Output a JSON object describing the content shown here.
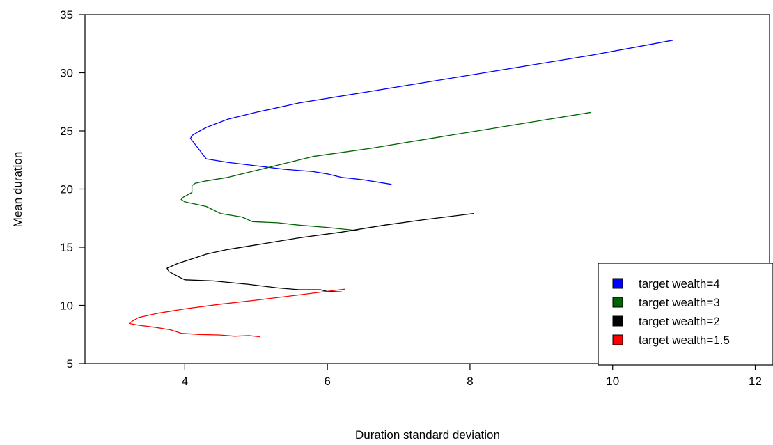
{
  "chart_data": {
    "type": "line",
    "title": "",
    "xlabel": "Duration standard deviation",
    "ylabel": "Mean duration",
    "xlim": [
      2.6,
      12.2
    ],
    "ylim": [
      5,
      35
    ],
    "x_ticks": [
      4,
      6,
      8,
      10,
      12
    ],
    "y_ticks": [
      5,
      10,
      15,
      20,
      25,
      30,
      35
    ],
    "grid": false,
    "legend_position": "bottom-right",
    "series": [
      {
        "name": "target wealth=4",
        "color": "#0000FF",
        "points": [
          [
            10.85,
            32.8
          ],
          [
            9.7,
            31.5
          ],
          [
            8.5,
            30.3
          ],
          [
            7.4,
            29.2
          ],
          [
            6.4,
            28.2
          ],
          [
            5.6,
            27.4
          ],
          [
            5.0,
            26.6
          ],
          [
            4.6,
            26.0
          ],
          [
            4.3,
            25.3
          ],
          [
            4.18,
            24.9
          ],
          [
            4.1,
            24.6
          ],
          [
            4.08,
            24.35
          ],
          [
            4.15,
            23.8
          ],
          [
            4.3,
            22.6
          ],
          [
            4.6,
            22.3
          ],
          [
            5.0,
            22.0
          ],
          [
            5.4,
            21.7
          ],
          [
            5.8,
            21.5
          ],
          [
            6.0,
            21.3
          ],
          [
            6.2,
            21.0
          ],
          [
            6.5,
            20.8
          ],
          [
            6.9,
            20.4
          ]
        ]
      },
      {
        "name": "target wealth=3",
        "color": "#006400",
        "points": [
          [
            9.7,
            26.6
          ],
          [
            8.7,
            25.6
          ],
          [
            7.6,
            24.5
          ],
          [
            6.6,
            23.5
          ],
          [
            5.8,
            22.8
          ],
          [
            5.4,
            22.2
          ],
          [
            5.0,
            21.6
          ],
          [
            4.6,
            21.0
          ],
          [
            4.3,
            20.7
          ],
          [
            4.15,
            20.5
          ],
          [
            4.1,
            20.3
          ],
          [
            4.1,
            19.7
          ],
          [
            3.98,
            19.3
          ],
          [
            3.95,
            19.1
          ],
          [
            4.0,
            18.9
          ],
          [
            4.3,
            18.5
          ],
          [
            4.5,
            17.9
          ],
          [
            4.8,
            17.6
          ],
          [
            4.95,
            17.2
          ],
          [
            5.3,
            17.1
          ],
          [
            5.6,
            16.9
          ],
          [
            6.0,
            16.7
          ],
          [
            6.3,
            16.5
          ],
          [
            6.45,
            16.4
          ],
          [
            6.3,
            16.5
          ]
        ]
      },
      {
        "name": "target wealth=2",
        "color": "#000000",
        "points": [
          [
            8.05,
            17.9
          ],
          [
            7.4,
            17.4
          ],
          [
            6.8,
            16.9
          ],
          [
            6.2,
            16.3
          ],
          [
            5.6,
            15.8
          ],
          [
            5.0,
            15.2
          ],
          [
            4.6,
            14.8
          ],
          [
            4.3,
            14.4
          ],
          [
            4.1,
            14.0
          ],
          [
            3.9,
            13.6
          ],
          [
            3.75,
            13.2
          ],
          [
            3.78,
            12.9
          ],
          [
            3.9,
            12.5
          ],
          [
            4.0,
            12.2
          ],
          [
            4.4,
            12.1
          ],
          [
            4.9,
            11.8
          ],
          [
            5.3,
            11.5
          ],
          [
            5.6,
            11.35
          ],
          [
            5.9,
            11.35
          ],
          [
            6.0,
            11.2
          ],
          [
            6.2,
            11.15
          ]
        ]
      },
      {
        "name": "target wealth=1.5",
        "color": "#FF0000",
        "points": [
          [
            6.25,
            11.4
          ],
          [
            5.6,
            10.9
          ],
          [
            5.0,
            10.45
          ],
          [
            4.5,
            10.1
          ],
          [
            4.0,
            9.7
          ],
          [
            3.6,
            9.3
          ],
          [
            3.35,
            8.95
          ],
          [
            3.28,
            8.7
          ],
          [
            3.22,
            8.45
          ],
          [
            3.35,
            8.3
          ],
          [
            3.6,
            8.1
          ],
          [
            3.8,
            7.9
          ],
          [
            3.95,
            7.6
          ],
          [
            4.2,
            7.5
          ],
          [
            4.5,
            7.45
          ],
          [
            4.7,
            7.35
          ],
          [
            4.9,
            7.4
          ],
          [
            5.05,
            7.3
          ]
        ]
      }
    ]
  }
}
